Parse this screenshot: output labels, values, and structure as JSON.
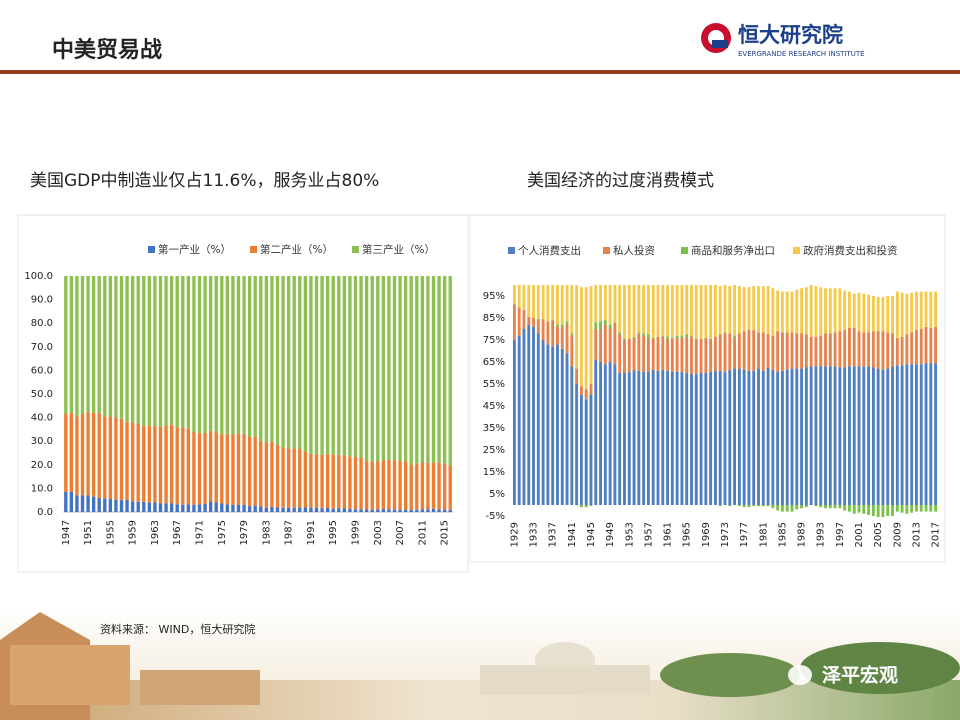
{
  "header": {
    "title": "中美贸易战",
    "logo_cn": "恒大研究院",
    "logo_en": "EVERGRANDE RESEARCH INSTITUTE"
  },
  "source": "资料来源： WIND，恒大研究院",
  "watermark": "泽平宏观",
  "chart_data": [
    {
      "type": "bar",
      "stacked": true,
      "title": "美国GDP中制造业仅占11.6%，服务业占80%",
      "legend": "top",
      "grid": false,
      "categories": [
        "1947",
        null,
        null,
        null,
        "1951",
        null,
        null,
        null,
        "1955",
        null,
        null,
        null,
        "1959",
        null,
        null,
        null,
        "1963",
        null,
        null,
        null,
        "1967",
        null,
        null,
        null,
        "1971",
        null,
        null,
        null,
        "1975",
        null,
        null,
        null,
        "1979",
        null,
        null,
        null,
        "1983",
        null,
        null,
        null,
        "1987",
        null,
        null,
        null,
        "1991",
        null,
        null,
        null,
        "1995",
        null,
        null,
        null,
        "1999",
        null,
        null,
        null,
        "2003",
        null,
        null,
        null,
        "2007",
        null,
        null,
        null,
        "2011",
        null,
        null,
        null,
        "2015",
        null
      ],
      "ylim": [
        0,
        100
      ],
      "yticks": [
        {
          "value": 0,
          "label": "0.0"
        },
        {
          "value": 10,
          "label": "10.0"
        },
        {
          "value": 20,
          "label": "20.0"
        },
        {
          "value": 30,
          "label": "30.0"
        },
        {
          "value": 40,
          "label": "40.0"
        },
        {
          "value": 50,
          "label": "50.0"
        },
        {
          "value": 60,
          "label": "60.0"
        },
        {
          "value": 70,
          "label": "70.0"
        },
        {
          "value": 80,
          "label": "80.0"
        },
        {
          "value": 90,
          "label": "90.0"
        },
        {
          "value": 100,
          "label": "100.0"
        }
      ],
      "series": [
        {
          "name": "第一产业（%）",
          "color": "#4472c4",
          "values": [
            8.5,
            8.6,
            7.0,
            7.0,
            7.0,
            6.5,
            6.0,
            5.8,
            5.5,
            5.2,
            5.0,
            5.2,
            4.5,
            4.3,
            4.3,
            4.1,
            4.0,
            3.6,
            3.7,
            3.6,
            3.3,
            3.1,
            3.2,
            3.1,
            3.2,
            3.4,
            4.5,
            4.0,
            3.6,
            3.2,
            3.0,
            3.1,
            3.1,
            2.5,
            2.7,
            2.3,
            1.7,
            2.2,
            1.9,
            1.8,
            1.8,
            1.7,
            1.9,
            1.9,
            1.7,
            1.8,
            1.6,
            1.7,
            1.4,
            1.6,
            1.5,
            1.3,
            1.2,
            1.2,
            1.1,
            1.0,
            1.1,
            1.3,
            1.1,
            1.0,
            1.0,
            1.0,
            0.9,
            1.0,
            1.2,
            1.2,
            1.4,
            1.2,
            1.0,
            0.9
          ]
        },
        {
          "name": "第二产业（%）",
          "color": "#ed7d31",
          "values": [
            33.0,
            33.4,
            33.5,
            34.5,
            35.5,
            35.5,
            36.0,
            34.7,
            35.0,
            35.0,
            34.5,
            33.0,
            33.5,
            33.0,
            32.2,
            32.4,
            32.5,
            32.5,
            33.0,
            33.4,
            32.7,
            32.7,
            32.3,
            30.9,
            30.3,
            30.1,
            29.9,
            29.7,
            29.3,
            29.8,
            30.0,
            30.2,
            30.0,
            29.5,
            29.2,
            27.9,
            27.7,
            27.8,
            26.6,
            25.6,
            25.2,
            25.2,
            24.8,
            23.7,
            22.9,
            22.7,
            22.6,
            23.0,
            22.9,
            22.6,
            22.5,
            22.3,
            22.1,
            22.0,
            20.8,
            20.2,
            20.3,
            20.7,
            21.0,
            21.0,
            20.7,
            20.4,
            19.0,
            19.5,
            19.8,
            19.7,
            19.6,
            19.8,
            19.4,
            18.8
          ]
        },
        {
          "name": "第三产业（%）",
          "color": "#8cc152",
          "values": [
            58.5,
            58.0,
            59.5,
            58.5,
            57.5,
            58.0,
            58.0,
            59.5,
            59.5,
            59.8,
            60.5,
            61.8,
            62.0,
            62.7,
            63.5,
            63.5,
            63.5,
            63.9,
            63.3,
            63.0,
            64.0,
            64.2,
            64.5,
            66.0,
            66.5,
            66.5,
            65.6,
            66.3,
            67.1,
            67.0,
            67.0,
            66.7,
            66.9,
            68.0,
            68.1,
            69.8,
            70.6,
            70.0,
            71.5,
            72.6,
            73.0,
            73.1,
            73.3,
            74.4,
            75.4,
            75.5,
            75.8,
            75.3,
            75.7,
            75.8,
            76.0,
            76.4,
            76.7,
            76.8,
            78.1,
            78.8,
            78.6,
            78.0,
            77.9,
            78.0,
            78.3,
            78.6,
            80.1,
            79.5,
            79.0,
            79.1,
            79.0,
            79.0,
            79.6,
            80.3
          ]
        }
      ]
    },
    {
      "type": "bar",
      "stacked": true,
      "title": "美国经济的过度消费模式",
      "legend": "top",
      "grid": false,
      "categories": [
        "1929",
        null,
        null,
        null,
        "1933",
        null,
        null,
        null,
        "1937",
        null,
        null,
        null,
        "1941",
        null,
        null,
        null,
        "1945",
        null,
        null,
        null,
        "1949",
        null,
        null,
        null,
        "1953",
        null,
        null,
        null,
        "1957",
        null,
        null,
        null,
        "1961",
        null,
        null,
        null,
        "1965",
        null,
        null,
        null,
        "1969",
        null,
        null,
        null,
        "1973",
        null,
        null,
        null,
        "1977",
        null,
        null,
        null,
        "1981",
        null,
        null,
        null,
        "1985",
        null,
        null,
        null,
        "1989",
        null,
        null,
        null,
        "1993",
        null,
        null,
        null,
        "1997",
        null,
        null,
        null,
        "2001",
        null,
        null,
        null,
        "2005",
        null,
        null,
        null,
        "2009",
        null,
        null,
        null,
        "2013",
        null,
        null,
        null,
        "2017"
      ],
      "ylim": [
        -5,
        100
      ],
      "yticks": [
        {
          "value": -5,
          "label": "-5%"
        },
        {
          "value": 5,
          "label": "5%"
        },
        {
          "value": 15,
          "label": "15%"
        },
        {
          "value": 25,
          "label": "25%"
        },
        {
          "value": 35,
          "label": "35%"
        },
        {
          "value": 45,
          "label": "45%"
        },
        {
          "value": 55,
          "label": "55%"
        },
        {
          "value": 65,
          "label": "65%"
        },
        {
          "value": 75,
          "label": "75%"
        },
        {
          "value": 85,
          "label": "85%"
        },
        {
          "value": 95,
          "label": "95%"
        }
      ],
      "series": [
        {
          "name": "个人消费支出",
          "color": "#4f7fc0",
          "values": [
            75,
            77,
            80,
            82,
            81,
            78,
            75,
            73,
            72,
            73,
            71,
            69,
            63,
            55,
            50,
            48,
            50,
            66,
            65,
            64,
            65,
            64,
            60,
            60,
            60.5,
            61.5,
            61,
            60.5,
            60.5,
            61.5,
            61,
            61.5,
            61,
            60.5,
            60.5,
            60.5,
            60,
            59.5,
            59.5,
            60,
            60,
            60.5,
            61,
            61,
            60.5,
            61.5,
            62,
            62,
            61.5,
            61,
            61,
            62,
            61,
            62.5,
            61.5,
            60.5,
            61,
            61.5,
            62,
            62,
            62,
            62.5,
            63,
            63,
            63,
            63,
            63,
            63,
            62.5,
            62.5,
            63,
            63,
            63,
            63,
            63,
            62.5,
            62,
            61.5,
            62,
            63,
            63.5,
            63.5,
            64,
            64,
            64,
            64,
            64.5,
            64.5,
            64.5
          ]
        },
        {
          "name": "私人投资",
          "color": "#e8824a",
          "values": [
            16,
            12.5,
            8.5,
            3.5,
            4,
            6,
            9.5,
            10.5,
            12,
            8,
            10,
            13,
            14,
            7,
            4,
            4.5,
            5,
            14,
            14.5,
            18,
            15,
            18.5,
            17.5,
            15,
            15,
            14.5,
            17,
            16.5,
            15.5,
            14,
            15.5,
            15,
            14.5,
            15,
            15.5,
            15.5,
            16.5,
            17,
            15.5,
            15.5,
            16,
            14.5,
            15.5,
            16.5,
            17.5,
            16.5,
            14,
            16,
            17.5,
            18.5,
            18.5,
            16.5,
            17.5,
            15,
            15.5,
            18.5,
            17.5,
            17,
            16.5,
            16,
            16,
            15,
            13.5,
            13.5,
            14,
            15,
            15,
            15.5,
            16.5,
            17,
            17.5,
            17.5,
            16,
            15.5,
            15.5,
            16.5,
            17,
            17.5,
            16.5,
            15,
            12.5,
            13,
            13.5,
            14.5,
            15.5,
            16,
            16.5,
            16,
            16.5
          ]
        },
        {
          "name": "商品和服务净出口",
          "color": "#7cc04a",
          "values": [
            0.4,
            0.3,
            0.1,
            0.1,
            0,
            0.5,
            0,
            0,
            0.2,
            1,
            1,
            1.5,
            1,
            -0.1,
            -1,
            -1,
            -0.5,
            3,
            4,
            2,
            2,
            0.5,
            1,
            0.5,
            0,
            0.5,
            0.5,
            1,
            1.5,
            0.5,
            0,
            0.5,
            1,
            0.5,
            1,
            1,
            1,
            0.5,
            0.5,
            0,
            0,
            0.5,
            0,
            -0.5,
            0.5,
            -0.5,
            1,
            -0.5,
            -1,
            -1,
            -0.5,
            -0.5,
            -0.5,
            -0.5,
            -1.5,
            -2.5,
            -3,
            -3,
            -3,
            -2,
            -1.5,
            -1,
            0,
            -0.5,
            -1,
            -1.5,
            -1.5,
            -1.5,
            -1.5,
            -2.5,
            -3,
            -4,
            -3.5,
            -4,
            -4.5,
            -5,
            -5.5,
            -5.5,
            -5,
            -5,
            -3,
            -3.5,
            -4,
            -3.5,
            -3,
            -3,
            -3,
            -3,
            -3
          ]
        },
        {
          "name": "政府消费支出和投资",
          "color": "#f5c94a",
          "values": [
            8.6,
            10.2,
            11.4,
            14.4,
            15,
            15.5,
            15.5,
            16.5,
            15.8,
            18,
            18,
            16.5,
            22,
            37.9,
            45,
            46.5,
            44.5,
            17,
            16.5,
            16,
            18,
            17,
            21.5,
            24.5,
            24.5,
            23.5,
            21.5,
            22,
            22.5,
            24,
            23.5,
            23,
            23.5,
            24,
            23,
            23,
            22.5,
            23,
            24.5,
            24.5,
            24,
            24.5,
            23.5,
            22,
            21.5,
            21.5,
            23,
            21.5,
            20,
            19.5,
            20,
            21,
            21,
            22,
            21.5,
            18.5,
            18.5,
            18.5,
            18.5,
            20,
            20.5,
            21.5,
            23.5,
            23,
            22,
            20.5,
            20.5,
            20,
            19.5,
            18,
            16.5,
            15.5,
            17.5,
            17.5,
            17,
            16,
            15.5,
            15.5,
            16.5,
            17,
            21,
            20,
            18.5,
            18,
            17.5,
            17,
            16,
            16.5,
            16
          ]
        }
      ]
    }
  ]
}
